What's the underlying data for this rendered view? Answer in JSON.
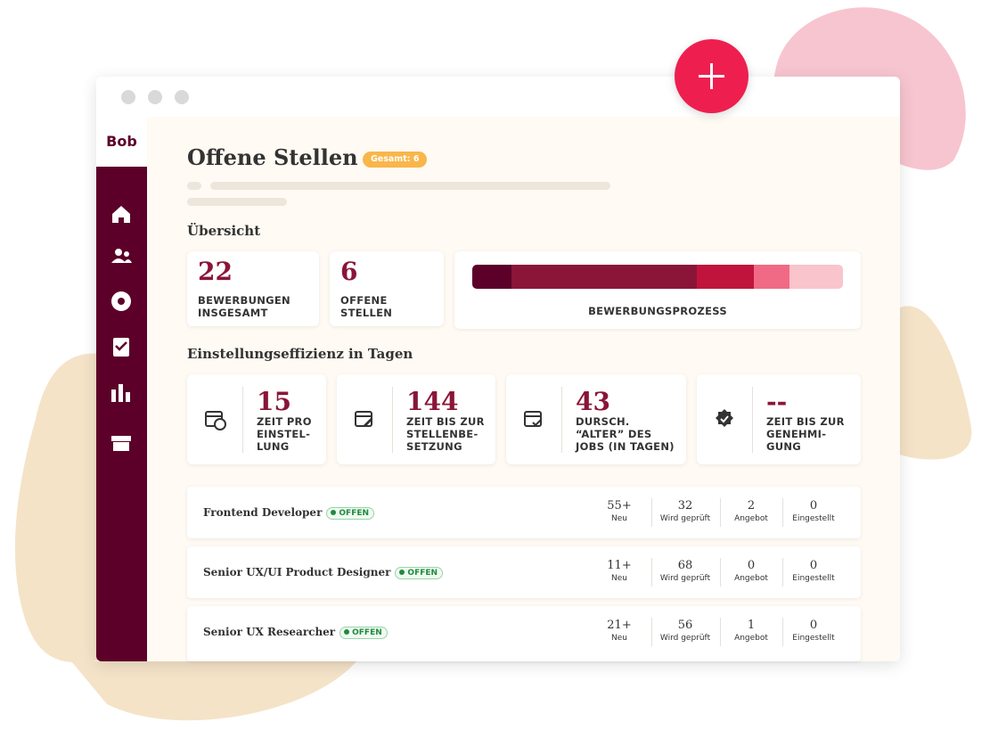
{
  "app": {
    "logo": "Bob"
  },
  "header": {
    "title": "Offene Stellen",
    "badge": "Gesamt: 6"
  },
  "overview": {
    "heading": "Übersicht",
    "stats": [
      {
        "value": 22,
        "label": [
          "BEWERBUNGEN",
          "INSGESAMT"
        ]
      },
      {
        "value": 6,
        "label": [
          "OFFENE",
          "STELLEN"
        ]
      }
    ],
    "process_label": "BEWERBUNGSPROZESS"
  },
  "efficiency": {
    "heading": "Einstellungseffizienz in Tagen",
    "cards": [
      {
        "value": 15,
        "label": [
          "ZEIT PRO",
          "EINSTEL-",
          "LUNG"
        ]
      },
      {
        "value": 144,
        "label": [
          "ZEIT BIS ZUR",
          "STELLENBE-",
          "SETZUNG"
        ]
      },
      {
        "value": 43,
        "label": [
          "DURSCH.",
          "“ALTER” DES",
          "JOBS (IN TAGEN)"
        ]
      },
      {
        "value": "--",
        "label": [
          "ZEIT BIS ZUR",
          "GENEHMI-",
          "GUNG"
        ]
      }
    ]
  },
  "jobs": [
    {
      "title": "Frontend Developer",
      "status": "OFFEN",
      "stats": [
        {
          "value": "55+",
          "label": "Neu"
        },
        {
          "value": 32,
          "label": "Wird geprüft"
        },
        {
          "value": 2,
          "label": "Angebot"
        },
        {
          "value": 0,
          "label": "Eingestellt"
        }
      ]
    },
    {
      "title": "Senior UX/UI Product Designer",
      "status": "OFFEN",
      "stats": [
        {
          "value": "11+",
          "label": "Neu"
        },
        {
          "value": 68,
          "label": "Wird geprüft"
        },
        {
          "value": 0,
          "label": "Angebot"
        },
        {
          "value": 0,
          "label": "Eingestellt"
        }
      ]
    },
    {
      "title": "Senior UX Researcher",
      "status": "OFFEN",
      "stats": [
        {
          "value": "21+",
          "label": "Neu"
        },
        {
          "value": 56,
          "label": "Wird geprüft"
        },
        {
          "value": 1,
          "label": "Angebot"
        },
        {
          "value": 0,
          "label": "Eingestellt"
        }
      ]
    }
  ]
}
